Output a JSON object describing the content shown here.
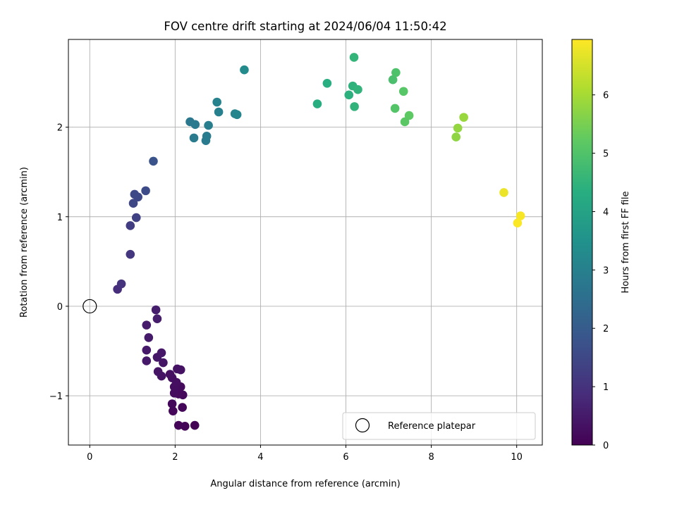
{
  "chart_data": {
    "type": "scatter",
    "title": "FOV centre drift starting at 2024/06/04 11:50:42",
    "xlabel": "Angular distance from reference (arcmin)",
    "ylabel": "Rotation from reference (arcmin)",
    "xlim": [
      -0.5,
      10.6
    ],
    "ylim": [
      -1.55,
      2.98
    ],
    "xticks": [
      0,
      2,
      4,
      6,
      8,
      10
    ],
    "yticks": [
      -1,
      0,
      1,
      2
    ],
    "grid": true,
    "colormap": "viridis",
    "colorbar": {
      "label": "Hours from first FF file",
      "min": 0,
      "max": 6.95,
      "ticks": [
        0,
        1,
        2,
        3,
        4,
        5,
        6
      ]
    },
    "legend": {
      "placement": "lower-right",
      "entries": [
        {
          "label": "Reference platepar",
          "marker": "open-circle",
          "x": 0,
          "y": 0
        }
      ]
    },
    "points": [
      {
        "x": 2.46,
        "y": -1.33,
        "hours": 0.02
      },
      {
        "x": 2.23,
        "y": -1.34,
        "hours": 0.05
      },
      {
        "x": 2.08,
        "y": -1.33,
        "hours": 0.08
      },
      {
        "x": 2.17,
        "y": -1.13,
        "hours": 0.1
      },
      {
        "x": 1.95,
        "y": -1.17,
        "hours": 0.12
      },
      {
        "x": 1.93,
        "y": -1.09,
        "hours": 0.14
      },
      {
        "x": 2.18,
        "y": -0.99,
        "hours": 0.16
      },
      {
        "x": 2.08,
        "y": -0.98,
        "hours": 0.18
      },
      {
        "x": 1.98,
        "y": -0.97,
        "hours": 0.2
      },
      {
        "x": 2.13,
        "y": -0.9,
        "hours": 0.22
      },
      {
        "x": 1.98,
        "y": -0.9,
        "hours": 0.24
      },
      {
        "x": 2.03,
        "y": -0.85,
        "hours": 0.26
      },
      {
        "x": 1.93,
        "y": -0.8,
        "hours": 0.28
      },
      {
        "x": 1.88,
        "y": -0.76,
        "hours": 0.3
      },
      {
        "x": 2.13,
        "y": -0.71,
        "hours": 0.32
      },
      {
        "x": 2.05,
        "y": -0.7,
        "hours": 0.34
      },
      {
        "x": 1.68,
        "y": -0.78,
        "hours": 0.36
      },
      {
        "x": 1.6,
        "y": -0.73,
        "hours": 0.38
      },
      {
        "x": 1.72,
        "y": -0.63,
        "hours": 0.4
      },
      {
        "x": 1.58,
        "y": -0.57,
        "hours": 0.42
      },
      {
        "x": 1.68,
        "y": -0.52,
        "hours": 0.44
      },
      {
        "x": 1.33,
        "y": -0.61,
        "hours": 0.46
      },
      {
        "x": 1.33,
        "y": -0.49,
        "hours": 0.48
      },
      {
        "x": 1.38,
        "y": -0.35,
        "hours": 0.5
      },
      {
        "x": 1.33,
        "y": -0.21,
        "hours": 0.52
      },
      {
        "x": 1.58,
        "y": -0.14,
        "hours": 0.54
      },
      {
        "x": 1.55,
        "y": -0.04,
        "hours": 0.56
      },
      {
        "x": 0.65,
        "y": 0.19,
        "hours": 0.9
      },
      {
        "x": 0.74,
        "y": 0.25,
        "hours": 1.0
      },
      {
        "x": 0.95,
        "y": 0.58,
        "hours": 1.1
      },
      {
        "x": 0.95,
        "y": 0.9,
        "hours": 1.25
      },
      {
        "x": 1.09,
        "y": 0.99,
        "hours": 1.35
      },
      {
        "x": 1.02,
        "y": 1.15,
        "hours": 1.45
      },
      {
        "x": 1.13,
        "y": 1.22,
        "hours": 1.5
      },
      {
        "x": 1.05,
        "y": 1.25,
        "hours": 1.55
      },
      {
        "x": 1.31,
        "y": 1.29,
        "hours": 1.6
      },
      {
        "x": 1.49,
        "y": 1.62,
        "hours": 1.8
      },
      {
        "x": 2.35,
        "y": 2.06,
        "hours": 2.75
      },
      {
        "x": 2.47,
        "y": 2.03,
        "hours": 2.8
      },
      {
        "x": 2.44,
        "y": 1.88,
        "hours": 2.85
      },
      {
        "x": 2.72,
        "y": 1.85,
        "hours": 2.85
      },
      {
        "x": 2.74,
        "y": 1.9,
        "hours": 2.9
      },
      {
        "x": 2.78,
        "y": 2.02,
        "hours": 2.95
      },
      {
        "x": 3.02,
        "y": 2.17,
        "hours": 3.0
      },
      {
        "x": 2.98,
        "y": 2.28,
        "hours": 3.05
      },
      {
        "x": 3.4,
        "y": 2.15,
        "hours": 3.1
      },
      {
        "x": 3.45,
        "y": 2.14,
        "hours": 3.15
      },
      {
        "x": 3.62,
        "y": 2.64,
        "hours": 3.3
      },
      {
        "x": 5.33,
        "y": 2.26,
        "hours": 4.3
      },
      {
        "x": 5.56,
        "y": 2.49,
        "hours": 4.35
      },
      {
        "x": 6.07,
        "y": 2.36,
        "hours": 4.4
      },
      {
        "x": 6.16,
        "y": 2.46,
        "hours": 4.45
      },
      {
        "x": 6.28,
        "y": 2.42,
        "hours": 4.5
      },
      {
        "x": 6.2,
        "y": 2.23,
        "hours": 4.5
      },
      {
        "x": 6.19,
        "y": 2.78,
        "hours": 4.55
      },
      {
        "x": 7.1,
        "y": 2.53,
        "hours": 4.9
      },
      {
        "x": 7.17,
        "y": 2.61,
        "hours": 4.95
      },
      {
        "x": 7.35,
        "y": 2.4,
        "hours": 5.1
      },
      {
        "x": 7.15,
        "y": 2.21,
        "hours": 5.05
      },
      {
        "x": 7.48,
        "y": 2.13,
        "hours": 5.2
      },
      {
        "x": 7.38,
        "y": 2.06,
        "hours": 5.15
      },
      {
        "x": 8.58,
        "y": 1.89,
        "hours": 5.75
      },
      {
        "x": 8.62,
        "y": 1.99,
        "hours": 5.8
      },
      {
        "x": 8.76,
        "y": 2.11,
        "hours": 5.85
      },
      {
        "x": 9.7,
        "y": 1.27,
        "hours": 6.75
      },
      {
        "x": 10.09,
        "y": 1.01,
        "hours": 6.88
      },
      {
        "x": 10.02,
        "y": 0.93,
        "hours": 6.92
      }
    ]
  }
}
